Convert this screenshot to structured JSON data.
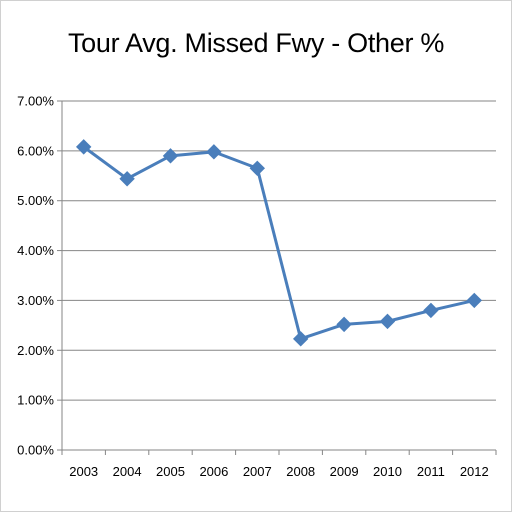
{
  "chart_data": {
    "type": "line",
    "title": "Tour Avg. Missed Fwy - Other %",
    "xlabel": "",
    "ylabel": "",
    "categories": [
      "2003",
      "2004",
      "2005",
      "2006",
      "2007",
      "2008",
      "2009",
      "2010",
      "2011",
      "2012"
    ],
    "series": [
      {
        "values": [
          6.08,
          5.44,
          5.9,
          5.98,
          5.65,
          2.23,
          2.52,
          2.58,
          2.8,
          3.0
        ],
        "color": "#4a7ebb",
        "marker": "diamond"
      }
    ],
    "ylim": [
      0,
      7
    ],
    "yticks": [
      "0.00%",
      "1.00%",
      "2.00%",
      "3.00%",
      "4.00%",
      "5.00%",
      "6.00%",
      "7.00%"
    ],
    "grid": true,
    "legend": "none"
  }
}
